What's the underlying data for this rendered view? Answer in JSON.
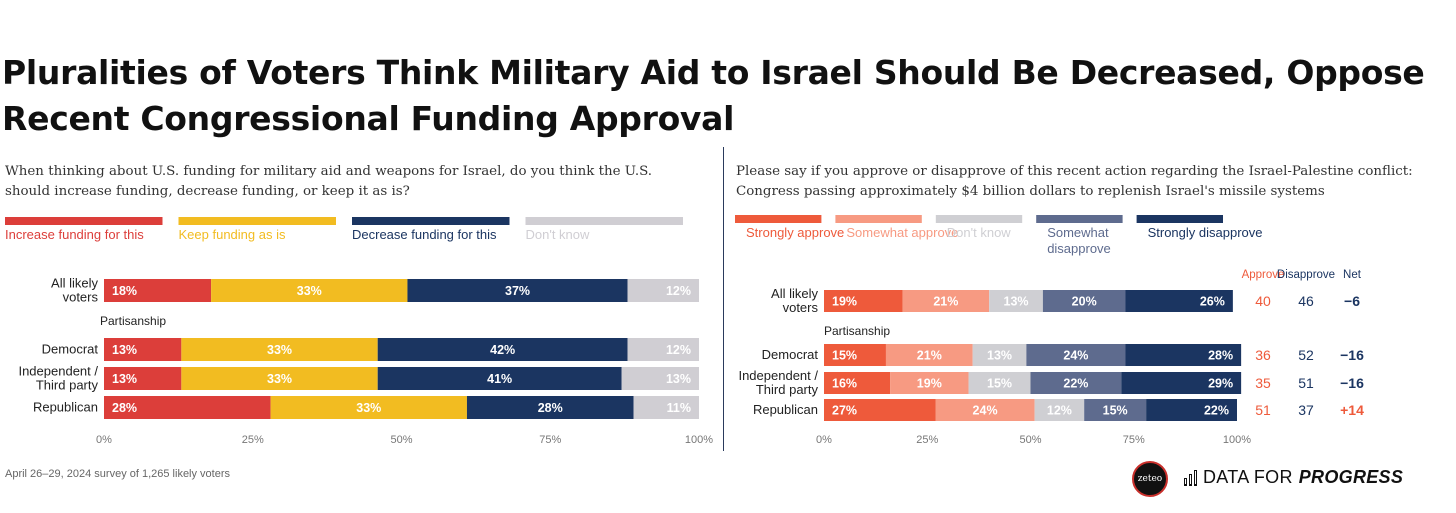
{
  "title": "Pluralities of Voters Think Military Aid to Israel Should Be Decreased, Oppose Recent Congressional Funding Approval",
  "footer": "April 26–29, 2024 survey of 1,265 likely voters",
  "logos": {
    "zeteo": "zeteo",
    "dfp_main": "DATA FOR",
    "dfp_em": "PROGRESS"
  },
  "chart_data": [
    {
      "type": "bar",
      "stacked": true,
      "orientation": "horizontal",
      "question": "When thinking about U.S. funding for military aid and weapons for Israel, do you think the U.S. should increase funding, decrease funding, or keep it as is?",
      "series": [
        {
          "name": "Increase funding for this",
          "color": "#dc3e3a"
        },
        {
          "name": "Keep funding as is",
          "color": "#f2bc21"
        },
        {
          "name": "Decrease funding for this",
          "color": "#1b3561"
        },
        {
          "name": "Don't know",
          "color": "#d0ced3"
        }
      ],
      "group_label": "Partisanship",
      "rows": [
        {
          "label": [
            "All likely",
            "voters"
          ],
          "values": [
            18,
            33,
            37,
            12
          ]
        },
        {
          "label": [
            "Democrat"
          ],
          "values": [
            13,
            33,
            42,
            12
          ]
        },
        {
          "label": [
            "Independent /",
            "Third party"
          ],
          "values": [
            13,
            33,
            41,
            13
          ]
        },
        {
          "label": [
            "Republican"
          ],
          "values": [
            28,
            33,
            28,
            11
          ]
        }
      ],
      "xlim": [
        0,
        100
      ],
      "xticks": [
        "0%",
        "25%",
        "50%",
        "75%",
        "100%"
      ]
    },
    {
      "type": "bar",
      "stacked": true,
      "orientation": "horizontal",
      "question": "Please say if you approve or disapprove of this recent action regarding the Israel-Palestine conflict: Congress passing approximately $4 billion dollars to replenish Israel's missile systems",
      "series": [
        {
          "name": "Strongly approve",
          "color": "#ee5a3b"
        },
        {
          "name": "Somewhat approve",
          "color": "#f79a82"
        },
        {
          "name": "Don't know",
          "color": "#cfcfd3"
        },
        {
          "name": [
            "Somewhat",
            "disapprove"
          ],
          "color": "#5e6b8e"
        },
        {
          "name": "Strongly disapprove",
          "color": "#1b3561"
        }
      ],
      "group_label": "Partisanship",
      "net_headers": [
        "Approve",
        "Disapprove",
        "Net"
      ],
      "rows": [
        {
          "label": [
            "All likely",
            "voters"
          ],
          "values": [
            19,
            21,
            13,
            20,
            26
          ],
          "approve": "40",
          "disapprove": "46",
          "net": "−6",
          "net_color": "#1b3561"
        },
        {
          "label": [
            "Democrat"
          ],
          "values": [
            15,
            21,
            13,
            24,
            28
          ],
          "approve": "36",
          "disapprove": "52",
          "net": "−16",
          "net_color": "#1b3561"
        },
        {
          "label": [
            "Independent /",
            "Third party"
          ],
          "values": [
            16,
            19,
            15,
            22,
            29
          ],
          "approve": "35",
          "disapprove": "51",
          "net": "−16",
          "net_color": "#1b3561"
        },
        {
          "label": [
            "Republican"
          ],
          "values": [
            27,
            24,
            12,
            15,
            22
          ],
          "approve": "51",
          "disapprove": "37",
          "net": "+14",
          "net_color": "#ee5a3b"
        }
      ],
      "xlim": [
        0,
        100
      ],
      "xticks": [
        "0%",
        "25%",
        "50%",
        "75%",
        "100%"
      ]
    }
  ]
}
